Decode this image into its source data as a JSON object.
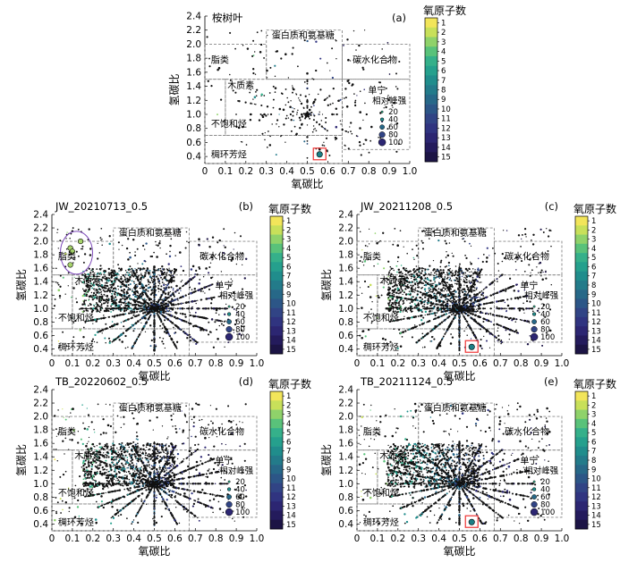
{
  "panel_titles": {
    "a": "桉树叶",
    "b": "JW_20210713_0.5",
    "c": "JW_20211208_0.5",
    "d": "TB_20220602_0.5",
    "e": "TB_20211124_0.5"
  },
  "panel_letters": {
    "a": "(a)",
    "b": "(b)",
    "c": "(c)",
    "d": "(d)",
    "e": "(e)"
  },
  "axis": {
    "xlabel": "氧碳比",
    "ylabel": "氢碳比"
  },
  "xticks": [
    "0",
    "0.1",
    "0.2",
    "0.3",
    "0.4",
    "0.5",
    "0.6",
    "0.7",
    "0.8",
    "0.9",
    "1.0"
  ],
  "yticks": [
    "0.4",
    "0.6",
    "0.8",
    "1.0",
    "1.2",
    "1.4",
    "1.6",
    "1.8",
    "2.0",
    "2.2",
    "2.4"
  ],
  "regions": {
    "lipid": "脂类",
    "protein": "蛋白质和氨基糖",
    "carbohydrate": "碳水化合物",
    "lignin": "木质素",
    "tannin": "单宁",
    "unsaturated": "不饱和烃",
    "aromatic": "稠环芳烃"
  },
  "size_legend": {
    "title": "相对峰强",
    "values": [
      "20",
      "40",
      "60",
      "80",
      "100"
    ]
  },
  "colorbar": {
    "title": "氧原子数",
    "ticks": [
      "1",
      "2",
      "3",
      "4",
      "5",
      "6",
      "7",
      "8",
      "9",
      "10",
      "11",
      "12",
      "13",
      "14",
      "15"
    ],
    "colors": [
      "#f2e55a",
      "#c8e05a",
      "#8fd26a",
      "#59c27a",
      "#35b08a",
      "#25a08d",
      "#208d8c",
      "#237b8a",
      "#276888",
      "#2c5687",
      "#314485",
      "#303480",
      "#2c2672",
      "#241b5c",
      "#1c1445"
    ]
  },
  "chart_data": [
    {
      "type": "scatter",
      "panel": "a",
      "title": "桉树叶",
      "xlabel": "氧碳比",
      "ylabel": "氢碳比",
      "xlim": [
        0,
        1
      ],
      "ylim": [
        0.3,
        2.4
      ],
      "color_variable": "氧原子数",
      "size_variable": "相对峰强",
      "density": "sparse",
      "highlight": {
        "x": 0.56,
        "y": 0.43,
        "box": "red"
      }
    },
    {
      "type": "scatter",
      "panel": "b",
      "title": "JW_20210713_0.5",
      "xlabel": "氧碳比",
      "ylabel": "氢碳比",
      "xlim": [
        0,
        1
      ],
      "ylim": [
        0.3,
        2.4
      ],
      "color_variable": "氧原子数",
      "size_variable": "相对峰强",
      "density": "dense",
      "highlight": {
        "x": 0.13,
        "y": 1.85,
        "box": "purple-ellipse"
      }
    },
    {
      "type": "scatter",
      "panel": "c",
      "title": "JW_20211208_0.5",
      "xlabel": "氧碳比",
      "ylabel": "氢碳比",
      "xlim": [
        0,
        1
      ],
      "ylim": [
        0.3,
        2.4
      ],
      "color_variable": "氧原子数",
      "size_variable": "相对峰强",
      "density": "dense",
      "highlight": {
        "x": 0.56,
        "y": 0.43,
        "box": "red"
      }
    },
    {
      "type": "scatter",
      "panel": "d",
      "title": "TB_20220602_0.5",
      "xlabel": "氧碳比",
      "ylabel": "氢碳比",
      "xlim": [
        0,
        1
      ],
      "ylim": [
        0.3,
        2.4
      ],
      "color_variable": "氧原子数",
      "size_variable": "相对峰强",
      "density": "dense",
      "highlight": null
    },
    {
      "type": "scatter",
      "panel": "e",
      "title": "TB_20211124_0.5",
      "xlabel": "氧碳比",
      "ylabel": "氢碳比",
      "xlim": [
        0,
        1
      ],
      "ylim": [
        0.3,
        2.4
      ],
      "color_variable": "氧原子数",
      "size_variable": "相对峰强",
      "density": "dense",
      "highlight": {
        "x": 0.56,
        "y": 0.43,
        "box": "red"
      }
    }
  ]
}
